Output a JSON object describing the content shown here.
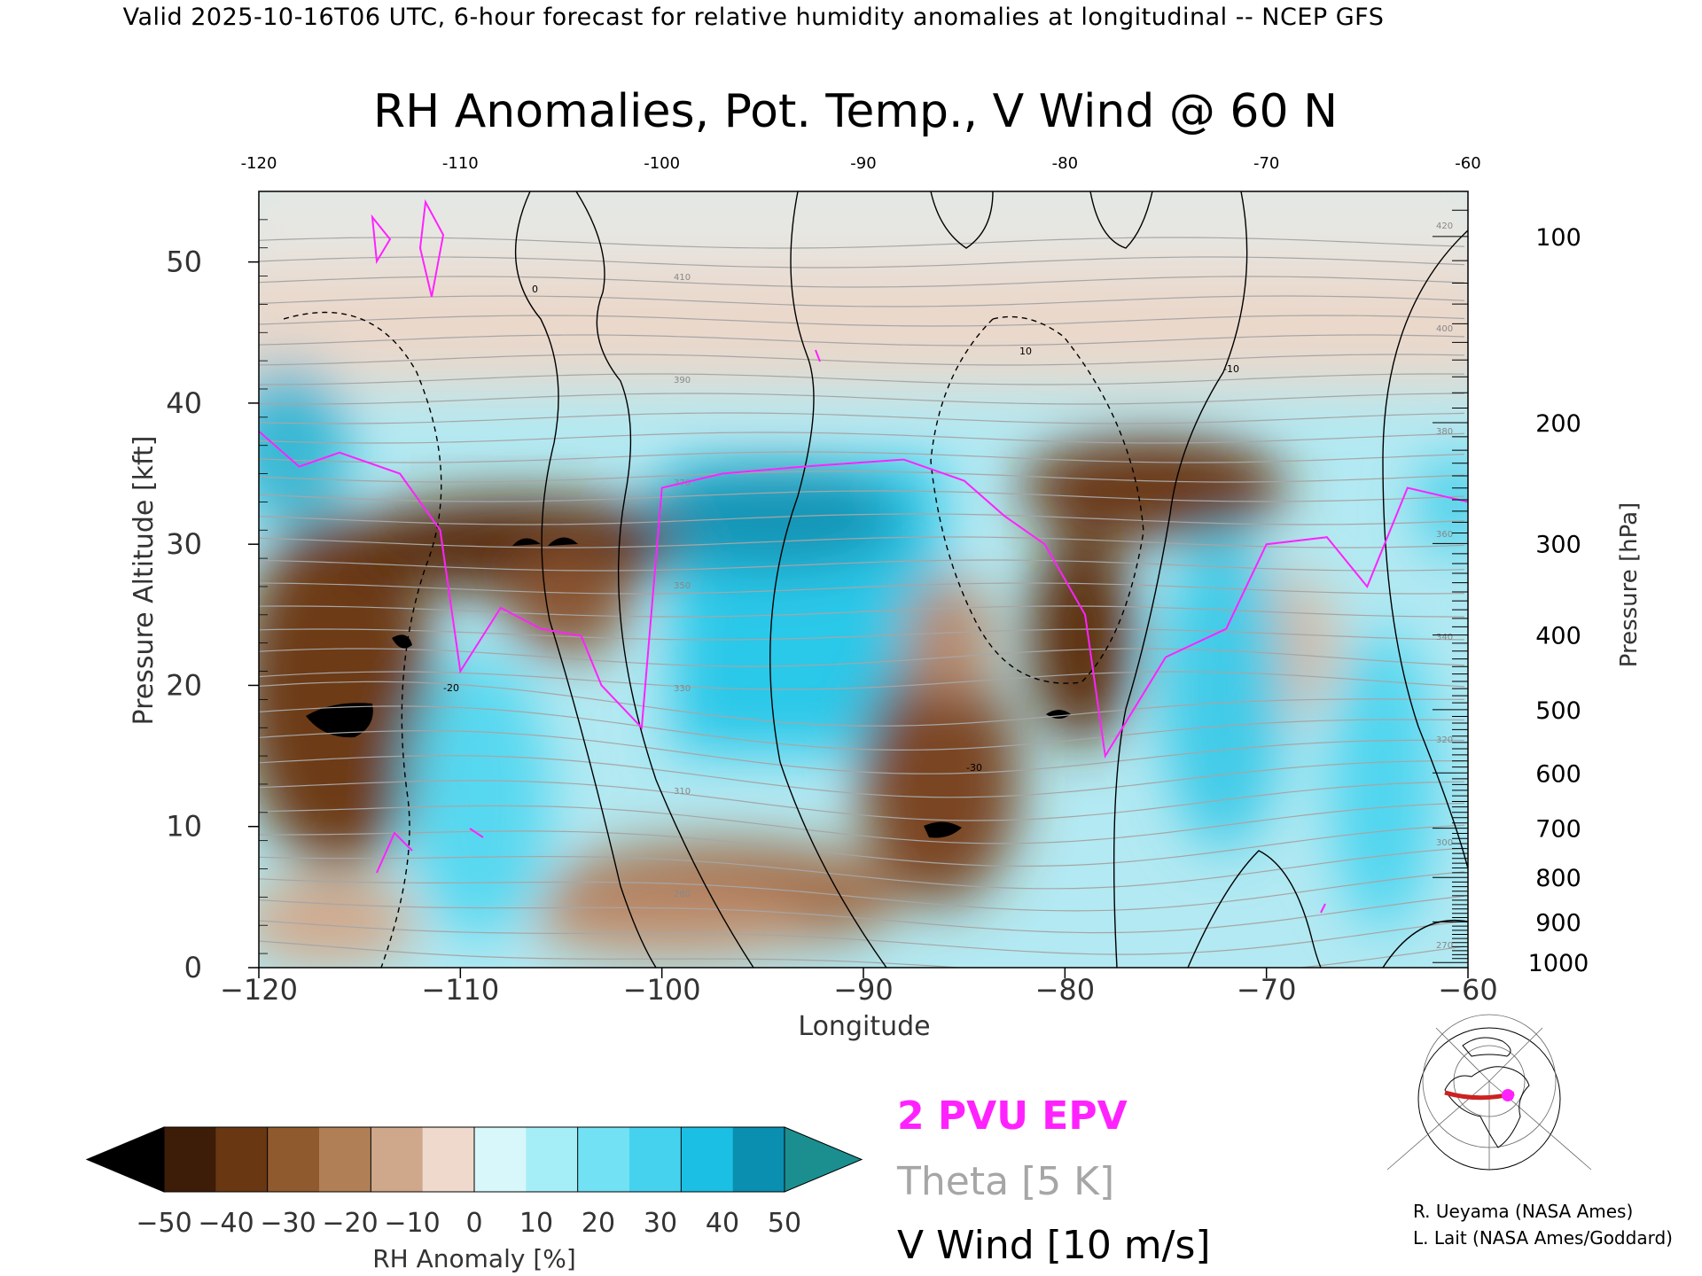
{
  "header": "Valid 2025-10-16T06 UTC, 6-hour forecast for relative humidity anomalies at longitudinal -- NCEP GFS",
  "chart_data": {
    "type": "heatmap",
    "title": "RH Anomalies, Pot. Temp., V Wind @ 60 N",
    "xlabel": "Longitude",
    "ylabel": "Pressure Altitude [kft]",
    "y2label": "Pressure [hPa]",
    "xlim": [
      -120,
      -60
    ],
    "ylim": [
      0,
      55
    ],
    "x_ticks": [
      -120,
      -110,
      -100,
      -90,
      -80,
      -70,
      -60
    ],
    "x_tick_labels": [
      "−120",
      "−110",
      "−100",
      "−90",
      "−80",
      "−70",
      "−60"
    ],
    "x_top_ticks": [
      -120,
      -110,
      -100,
      -90,
      -80,
      -70,
      -60
    ],
    "x_top_labels": [
      "-120",
      "-110",
      "-100",
      "-90",
      "-80",
      "-70",
      "-60"
    ],
    "y_ticks": [
      0,
      10,
      20,
      30,
      40,
      50
    ],
    "y_tick_labels": [
      "0",
      "10",
      "20",
      "30",
      "40",
      "50"
    ],
    "pressure_ticks": [
      {
        "p": 1000,
        "label": "1000"
      },
      {
        "p": 900,
        "label": "900"
      },
      {
        "p": 800,
        "label": "800"
      },
      {
        "p": 700,
        "label": "700"
      },
      {
        "p": 600,
        "label": "600"
      },
      {
        "p": 500,
        "label": "500"
      },
      {
        "p": 400,
        "label": "400"
      },
      {
        "p": 300,
        "label": "300"
      },
      {
        "p": 200,
        "label": "200"
      },
      {
        "p": 100,
        "label": "100"
      }
    ],
    "colorbar": {
      "label": "RH Anomaly [%]",
      "ticks": [
        "−50",
        "−40",
        "−30",
        "−20",
        "−10",
        "0",
        "10",
        "20",
        "30",
        "40",
        "50"
      ],
      "colors": [
        "#000000",
        "#3d1c08",
        "#6a3713",
        "#8f5a2e",
        "#b07f56",
        "#cfa78a",
        "#eed9cc",
        "#d7f7fa",
        "#a6eef7",
        "#71e1f3",
        "#45d2ef",
        "#1cbfe4",
        "#0a8fb0",
        "#1b8f8f"
      ]
    },
    "legend": [
      {
        "label": "2 PVU EPV",
        "color": "#ff22ff"
      },
      {
        "label": "Theta [5 K]",
        "color": "#a6a6a6"
      },
      {
        "label": "V Wind [10 m/s]",
        "color": "#000000"
      }
    ],
    "theta_labels": [
      "270",
      "280",
      "300",
      "310",
      "320",
      "330",
      "340",
      "350",
      "360",
      "370",
      "380",
      "390",
      "400",
      "410",
      "420"
    ],
    "wind_labels": [
      "0",
      "10",
      "-10",
      "-20",
      "-30"
    ],
    "anomaly_features": [
      {
        "lon": -100,
        "kft": 30,
        "rh": 45
      },
      {
        "lon": -92,
        "kft": 25,
        "rh": 35
      },
      {
        "lon": -107,
        "kft": 31,
        "rh": -45
      },
      {
        "lon": -117,
        "kft": 18,
        "rh": -50
      },
      {
        "lon": -86,
        "kft": 10,
        "rh": -45
      },
      {
        "lon": -78,
        "kft": 34,
        "rh": -40
      },
      {
        "lon": -72,
        "kft": 20,
        "rh": 35
      },
      {
        "lon": -118,
        "kft": 37,
        "rh": 50
      }
    ],
    "epv_2pvu": [
      [
        -120,
        38
      ],
      [
        -118,
        35.5
      ],
      [
        -116,
        36.5
      ],
      [
        -113,
        35
      ],
      [
        -111,
        31
      ],
      [
        -110,
        21
      ],
      [
        -108,
        25.5
      ],
      [
        -106,
        24
      ],
      [
        -104,
        23.5
      ],
      [
        -103,
        20
      ],
      [
        -101,
        17
      ],
      [
        -100,
        34
      ],
      [
        -97,
        35
      ],
      [
        -93,
        35.5
      ],
      [
        -88,
        36
      ],
      [
        -85,
        34.5
      ],
      [
        -83,
        32
      ],
      [
        -81,
        30
      ],
      [
        -79,
        25
      ],
      [
        -78,
        15
      ],
      [
        -75,
        22
      ],
      [
        -72,
        24
      ],
      [
        -70,
        30
      ],
      [
        -67,
        30.5
      ],
      [
        -65,
        27
      ],
      [
        -63,
        34
      ],
      [
        -60,
        33
      ]
    ]
  },
  "legend_title_sizes": "",
  "credits": [
    "R. Ueyama (NASA Ames)",
    "L. Lait (NASA Ames/Goddard)"
  ],
  "inset_map": {
    "icon": "polar-stereographic-map-icon",
    "marker_color": "#ff22ff",
    "track_color": "#cc2222"
  }
}
